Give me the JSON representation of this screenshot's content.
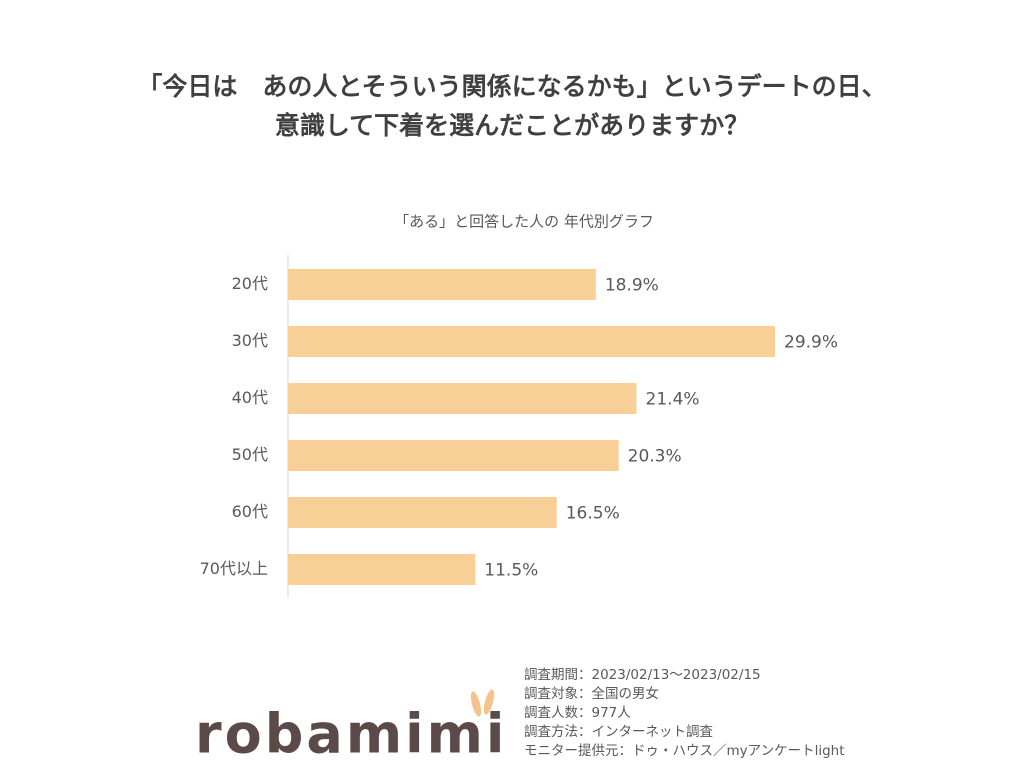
{
  "chart_data": {
    "type": "bar",
    "orientation": "horizontal",
    "title": [
      "「今日は　あの人とそういう関係になるかも」というデートの日、",
      "意識して下着を選んだことがありますか？"
    ],
    "subtitle": "「ある」と回答した人の 年代別グラフ",
    "categories": [
      "20代",
      "30代",
      "40代",
      "50代",
      "60代",
      "70代以上"
    ],
    "values": [
      18.9,
      29.9,
      21.4,
      20.3,
      16.5,
      11.5
    ],
    "value_labels": [
      "18.9%",
      "29.9%",
      "21.4%",
      "20.3%",
      "16.5%",
      "11.5%"
    ],
    "color": "#f9cf98"
  },
  "notes": [
    "調査期間：2023/02/13～2023/02/15",
    "調査対象：全国の男女",
    "調査人数：977人",
    "調査方法：インターネット調査",
    "モニター提供元：ドゥ・ハウス／myアンケートlight"
  ],
  "logo": "robamimi"
}
